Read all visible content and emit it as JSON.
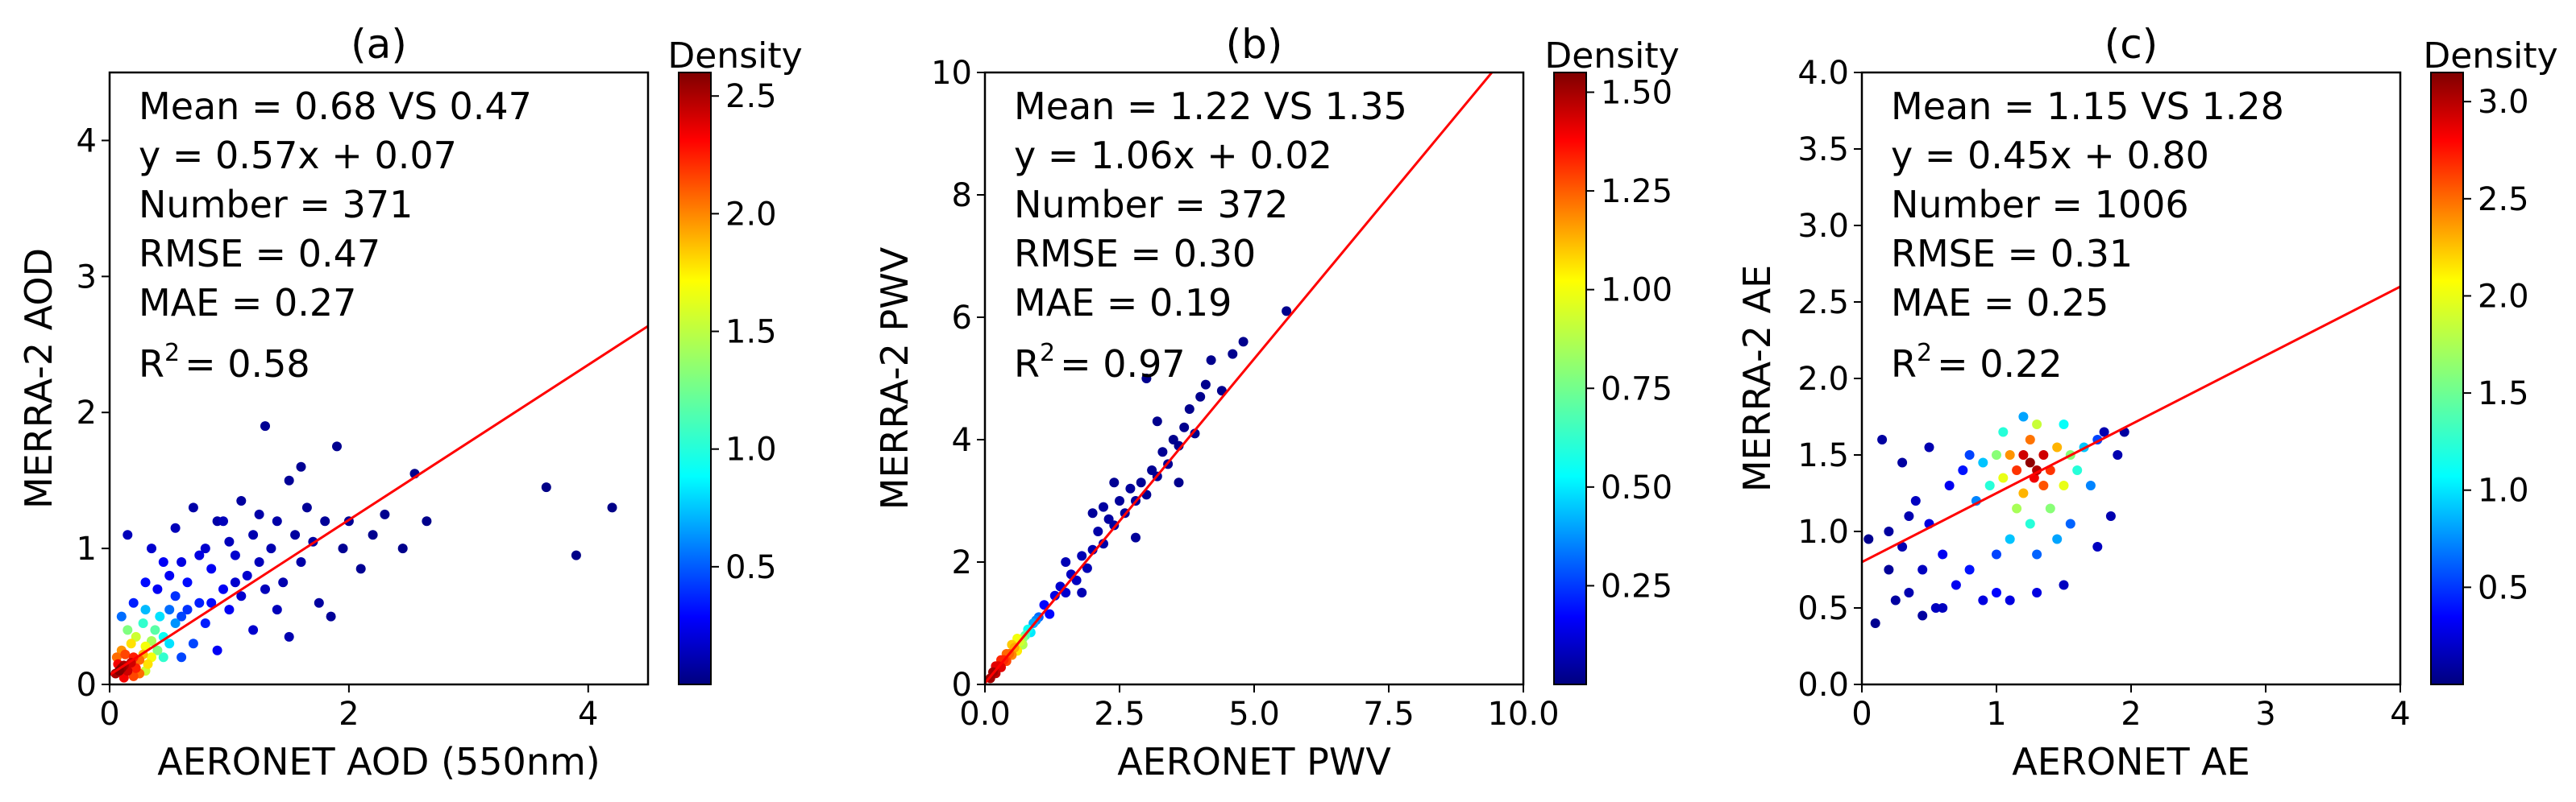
{
  "chart_data": [
    {
      "type": "scatter",
      "panel_label": "(a)",
      "xlabel": "AERONET AOD (550nm)",
      "ylabel": "MERRA-2 AOD",
      "xlim": [
        0,
        4.5
      ],
      "ylim": [
        0,
        4.5
      ],
      "xticks": [
        0,
        2,
        4
      ],
      "yticks": [
        0,
        1,
        2,
        3,
        4
      ],
      "xtick_labels": [
        "0",
        "2",
        "4"
      ],
      "ytick_labels": [
        "0",
        "1",
        "2",
        "3",
        "4"
      ],
      "stats": [
        "Mean = 0.68 VS 0.47",
        "y = 0.57x + 0.07",
        "Number = 371",
        "RMSE = 0.47",
        "MAE = 0.27"
      ],
      "r2_value": "= 0.58",
      "fit": {
        "slope": 0.57,
        "intercept": 0.07
      },
      "colorbar": {
        "title": "Density",
        "min": 0.0,
        "max": 2.6,
        "ticks": [
          0.5,
          1.0,
          1.5,
          2.0,
          2.5
        ],
        "tick_labels": [
          "0.5",
          "1.0",
          "1.5",
          "2.0",
          "2.5"
        ]
      },
      "points": [
        [
          0.05,
          0.08,
          2.5
        ],
        [
          0.08,
          0.1,
          2.6
        ],
        [
          0.1,
          0.12,
          2.55
        ],
        [
          0.12,
          0.14,
          2.5
        ],
        [
          0.15,
          0.1,
          2.4
        ],
        [
          0.07,
          0.15,
          2.3
        ],
        [
          0.18,
          0.16,
          2.4
        ],
        [
          0.2,
          0.2,
          2.2
        ],
        [
          0.13,
          0.22,
          2.1
        ],
        [
          0.22,
          0.12,
          2.2
        ],
        [
          0.25,
          0.18,
          2.0
        ],
        [
          0.1,
          0.25,
          1.9
        ],
        [
          0.28,
          0.22,
          1.8
        ],
        [
          0.3,
          0.28,
          1.6
        ],
        [
          0.18,
          0.3,
          1.7
        ],
        [
          0.32,
          0.15,
          1.7
        ],
        [
          0.35,
          0.32,
          1.4
        ],
        [
          0.22,
          0.35,
          1.5
        ],
        [
          0.4,
          0.25,
          1.3
        ],
        [
          0.15,
          0.4,
          1.3
        ],
        [
          0.38,
          0.4,
          1.2
        ],
        [
          0.45,
          0.35,
          1.0
        ],
        [
          0.28,
          0.45,
          1.1
        ],
        [
          0.5,
          0.3,
          0.9
        ],
        [
          0.42,
          0.5,
          0.9
        ],
        [
          0.55,
          0.45,
          0.7
        ],
        [
          0.3,
          0.55,
          0.8
        ],
        [
          0.5,
          0.55,
          0.6
        ],
        [
          0.6,
          0.5,
          0.5
        ],
        [
          0.06,
          0.2,
          2.0
        ],
        [
          0.2,
          0.06,
          2.1
        ],
        [
          0.12,
          0.05,
          2.3
        ],
        [
          0.25,
          0.08,
          2.0
        ],
        [
          0.35,
          0.2,
          1.6
        ],
        [
          0.45,
          0.2,
          1.1
        ],
        [
          0.3,
          0.1,
          1.5
        ],
        [
          0.15,
          1.1,
          0.15
        ],
        [
          0.1,
          0.5,
          0.6
        ],
        [
          0.2,
          0.6,
          0.4
        ],
        [
          0.3,
          0.75,
          0.35
        ],
        [
          0.4,
          0.7,
          0.3
        ],
        [
          0.5,
          0.8,
          0.3
        ],
        [
          0.55,
          0.65,
          0.45
        ],
        [
          0.6,
          0.9,
          0.25
        ],
        [
          0.65,
          0.75,
          0.35
        ],
        [
          0.7,
          1.3,
          0.1
        ],
        [
          0.75,
          0.6,
          0.4
        ],
        [
          0.8,
          1.0,
          0.2
        ],
        [
          0.85,
          0.85,
          0.3
        ],
        [
          0.9,
          1.2,
          0.1
        ],
        [
          0.95,
          0.7,
          0.3
        ],
        [
          1.0,
          1.05,
          0.15
        ],
        [
          1.05,
          0.95,
          0.2
        ],
        [
          1.1,
          1.35,
          0.08
        ],
        [
          1.15,
          0.8,
          0.2
        ],
        [
          1.2,
          1.1,
          0.12
        ],
        [
          1.25,
          0.9,
          0.15
        ],
        [
          1.3,
          1.9,
          0.05
        ],
        [
          1.35,
          1.0,
          0.12
        ],
        [
          1.4,
          1.2,
          0.1
        ],
        [
          1.45,
          0.75,
          0.12
        ],
        [
          1.5,
          1.5,
          0.06
        ],
        [
          1.55,
          1.1,
          0.08
        ],
        [
          1.6,
          0.9,
          0.1
        ],
        [
          1.65,
          1.3,
          0.06
        ],
        [
          1.7,
          1.05,
          0.08
        ],
        [
          1.75,
          0.6,
          0.08
        ],
        [
          1.8,
          1.2,
          0.06
        ],
        [
          1.85,
          0.5,
          0.06
        ],
        [
          1.9,
          1.75,
          0.04
        ],
        [
          1.95,
          1.0,
          0.05
        ],
        [
          2.0,
          1.2,
          0.05
        ],
        [
          2.1,
          0.85,
          0.05
        ],
        [
          2.2,
          1.1,
          0.04
        ],
        [
          2.3,
          1.25,
          0.04
        ],
        [
          2.45,
          1.0,
          0.03
        ],
        [
          2.55,
          1.55,
          0.03
        ],
        [
          2.65,
          1.2,
          0.03
        ],
        [
          3.65,
          1.45,
          0.02
        ],
        [
          3.9,
          0.95,
          0.02
        ],
        [
          4.2,
          1.3,
          0.02
        ],
        [
          0.7,
          0.3,
          0.5
        ],
        [
          0.8,
          0.45,
          0.4
        ],
        [
          0.9,
          0.25,
          0.3
        ],
        [
          1.0,
          0.55,
          0.3
        ],
        [
          1.2,
          0.4,
          0.2
        ],
        [
          1.4,
          0.55,
          0.15
        ],
        [
          1.5,
          0.35,
          0.12
        ],
        [
          0.6,
          0.2,
          0.5
        ],
        [
          0.95,
          1.2,
          0.15
        ],
        [
          1.1,
          0.65,
          0.2
        ],
        [
          1.3,
          0.7,
          0.15
        ],
        [
          0.45,
          0.9,
          0.3
        ],
        [
          0.35,
          1.0,
          0.2
        ],
        [
          0.55,
          1.15,
          0.15
        ],
        [
          0.75,
          0.95,
          0.25
        ],
        [
          1.6,
          1.6,
          0.05
        ],
        [
          1.25,
          1.25,
          0.1
        ],
        [
          1.05,
          0.75,
          0.2
        ],
        [
          0.85,
          0.6,
          0.35
        ],
        [
          0.65,
          0.55,
          0.45
        ]
      ]
    },
    {
      "type": "scatter",
      "panel_label": "(b)",
      "xlabel": "AERONET PWV",
      "ylabel": "MERRA-2 PWV",
      "xlim": [
        0,
        10
      ],
      "ylim": [
        0,
        10
      ],
      "xticks": [
        0,
        2.5,
        5,
        7.5,
        10
      ],
      "yticks": [
        0,
        2,
        4,
        6,
        8,
        10
      ],
      "xtick_labels": [
        "0.0",
        "2.5",
        "5.0",
        "7.5",
        "10.0"
      ],
      "ytick_labels": [
        "0",
        "2",
        "4",
        "6",
        "8",
        "10"
      ],
      "stats": [
        "Mean = 1.22 VS 1.35",
        "y = 1.06x + 0.02",
        "Number = 372",
        "RMSE = 0.30",
        "MAE = 0.19"
      ],
      "r2_value": "= 0.97",
      "fit": {
        "slope": 1.06,
        "intercept": 0.02
      },
      "colorbar": {
        "title": "Density",
        "min": 0.0,
        "max": 1.55,
        "ticks": [
          0.25,
          0.5,
          0.75,
          1.0,
          1.25,
          1.5
        ],
        "tick_labels": [
          "0.25",
          "0.50",
          "0.75",
          "1.00",
          "1.25",
          "1.50"
        ]
      },
      "points": [
        [
          0.1,
          0.1,
          1.5
        ],
        [
          0.15,
          0.2,
          1.5
        ],
        [
          0.2,
          0.18,
          1.45
        ],
        [
          0.25,
          0.3,
          1.4
        ],
        [
          0.3,
          0.28,
          1.4
        ],
        [
          0.35,
          0.4,
          1.3
        ],
        [
          0.4,
          0.38,
          1.25
        ],
        [
          0.45,
          0.5,
          1.2
        ],
        [
          0.5,
          0.48,
          1.15
        ],
        [
          0.55,
          0.6,
          1.1
        ],
        [
          0.6,
          0.55,
          1.0
        ],
        [
          0.65,
          0.7,
          0.9
        ],
        [
          0.7,
          0.75,
          0.8
        ],
        [
          0.75,
          0.8,
          0.7
        ],
        [
          0.8,
          0.9,
          0.6
        ],
        [
          0.85,
          0.85,
          0.55
        ],
        [
          0.9,
          1.0,
          0.45
        ],
        [
          0.95,
          1.05,
          0.4
        ],
        [
          1.0,
          1.1,
          0.35
        ],
        [
          0.3,
          0.4,
          1.3
        ],
        [
          0.4,
          0.5,
          1.2
        ],
        [
          0.5,
          0.65,
          1.05
        ],
        [
          0.2,
          0.3,
          1.4
        ],
        [
          0.6,
          0.75,
          0.95
        ],
        [
          0.7,
          0.65,
          0.85
        ],
        [
          1.1,
          1.3,
          0.2
        ],
        [
          1.2,
          1.15,
          0.2
        ],
        [
          1.3,
          1.45,
          0.15
        ],
        [
          1.4,
          1.6,
          0.12
        ],
        [
          1.5,
          1.5,
          0.12
        ],
        [
          1.6,
          1.8,
          0.1
        ],
        [
          1.7,
          1.7,
          0.1
        ],
        [
          1.8,
          2.1,
          0.08
        ],
        [
          1.9,
          1.9,
          0.08
        ],
        [
          2.0,
          2.2,
          0.07
        ],
        [
          2.1,
          2.5,
          0.06
        ],
        [
          2.2,
          2.3,
          0.06
        ],
        [
          2.3,
          2.7,
          0.05
        ],
        [
          2.4,
          2.6,
          0.05
        ],
        [
          2.5,
          3.0,
          0.04
        ],
        [
          2.6,
          2.8,
          0.04
        ],
        [
          2.7,
          3.2,
          0.04
        ],
        [
          2.8,
          3.0,
          0.04
        ],
        [
          2.9,
          3.3,
          0.03
        ],
        [
          3.0,
          3.1,
          0.03
        ],
        [
          3.1,
          3.5,
          0.03
        ],
        [
          3.2,
          3.4,
          0.03
        ],
        [
          3.3,
          3.8,
          0.03
        ],
        [
          3.4,
          3.6,
          0.03
        ],
        [
          3.5,
          4.0,
          0.02
        ],
        [
          3.6,
          3.9,
          0.02
        ],
        [
          3.7,
          4.2,
          0.02
        ],
        [
          3.8,
          4.5,
          0.02
        ],
        [
          3.9,
          4.1,
          0.02
        ],
        [
          4.0,
          4.7,
          0.02
        ],
        [
          4.1,
          4.9,
          0.02
        ],
        [
          4.2,
          5.3,
          0.02
        ],
        [
          4.4,
          4.8,
          0.02
        ],
        [
          4.6,
          5.4,
          0.02
        ],
        [
          4.8,
          5.6,
          0.02
        ],
        [
          5.6,
          6.1,
          0.02
        ],
        [
          2.4,
          3.3,
          0.03
        ],
        [
          2.0,
          2.8,
          0.04
        ],
        [
          3.2,
          4.3,
          0.02
        ],
        [
          1.5,
          2.0,
          0.08
        ],
        [
          2.8,
          2.4,
          0.04
        ],
        [
          3.6,
          3.3,
          0.02
        ],
        [
          1.8,
          1.5,
          0.08
        ],
        [
          3.0,
          5.0,
          0.02
        ],
        [
          2.2,
          2.9,
          0.05
        ]
      ]
    },
    {
      "type": "scatter",
      "panel_label": "(c)",
      "xlabel": "AERONET AE",
      "ylabel": "MERRA-2 AE",
      "xlim": [
        0,
        4
      ],
      "ylim": [
        0,
        4
      ],
      "xticks": [
        0,
        1,
        2,
        3,
        4
      ],
      "yticks": [
        0,
        0.5,
        1,
        1.5,
        2,
        2.5,
        3,
        3.5,
        4
      ],
      "xtick_labels": [
        "0",
        "1",
        "2",
        "3",
        "4"
      ],
      "ytick_labels": [
        "0.0",
        "0.5",
        "1.0",
        "1.5",
        "2.0",
        "2.5",
        "3.0",
        "3.5",
        "4.0"
      ],
      "stats": [
        "Mean = 1.15 VS 1.28",
        "y = 0.45x + 0.80",
        "Number = 1006",
        "RMSE = 0.31",
        "MAE = 0.25"
      ],
      "r2_value": "= 0.22",
      "fit": {
        "slope": 0.45,
        "intercept": 0.8
      },
      "colorbar": {
        "title": "Density",
        "min": 0.0,
        "max": 3.15,
        "ticks": [
          0.5,
          1.0,
          1.5,
          2.0,
          2.5,
          3.0
        ],
        "tick_labels": [
          "0.5",
          "1.0",
          "1.5",
          "2.0",
          "2.5",
          "3.0"
        ]
      },
      "points": [
        [
          1.25,
          1.45,
          3.1
        ],
        [
          1.3,
          1.4,
          3.0
        ],
        [
          1.2,
          1.5,
          2.9
        ],
        [
          1.35,
          1.5,
          2.9
        ],
        [
          1.28,
          1.35,
          2.8
        ],
        [
          1.15,
          1.4,
          2.6
        ],
        [
          1.4,
          1.4,
          2.6
        ],
        [
          1.25,
          1.6,
          2.4
        ],
        [
          1.35,
          1.3,
          2.5
        ],
        [
          1.1,
          1.5,
          2.3
        ],
        [
          1.45,
          1.55,
          2.2
        ],
        [
          1.2,
          1.25,
          2.2
        ],
        [
          1.05,
          1.35,
          1.9
        ],
        [
          1.5,
          1.3,
          1.9
        ],
        [
          1.3,
          1.7,
          1.8
        ],
        [
          1.0,
          1.5,
          1.6
        ],
        [
          1.55,
          1.5,
          1.6
        ],
        [
          1.15,
          1.15,
          1.7
        ],
        [
          1.4,
          1.15,
          1.6
        ],
        [
          0.95,
          1.3,
          1.3
        ],
        [
          1.6,
          1.4,
          1.3
        ],
        [
          1.25,
          1.05,
          1.3
        ],
        [
          1.05,
          1.65,
          1.3
        ],
        [
          1.5,
          1.7,
          1.2
        ],
        [
          0.9,
          1.45,
          1.0
        ],
        [
          1.65,
          1.55,
          1.0
        ],
        [
          1.1,
          0.95,
          1.0
        ],
        [
          1.45,
          0.95,
          0.9
        ],
        [
          0.85,
          1.2,
          0.8
        ],
        [
          1.7,
          1.3,
          0.8
        ],
        [
          1.2,
          1.75,
          0.9
        ],
        [
          1.3,
          0.85,
          0.7
        ],
        [
          0.8,
          1.5,
          0.6
        ],
        [
          1.75,
          1.6,
          0.6
        ],
        [
          1.0,
          0.85,
          0.6
        ],
        [
          1.55,
          1.05,
          0.7
        ],
        [
          0.15,
          1.6,
          0.1
        ],
        [
          0.2,
          1.0,
          0.1
        ],
        [
          0.1,
          0.4,
          0.05
        ],
        [
          0.25,
          0.55,
          0.1
        ],
        [
          0.3,
          0.9,
          0.15
        ],
        [
          0.35,
          0.6,
          0.15
        ],
        [
          0.4,
          1.2,
          0.2
        ],
        [
          0.45,
          0.75,
          0.2
        ],
        [
          0.5,
          1.05,
          0.3
        ],
        [
          0.55,
          0.5,
          0.2
        ],
        [
          0.6,
          0.85,
          0.35
        ],
        [
          0.65,
          1.3,
          0.35
        ],
        [
          0.7,
          0.65,
          0.35
        ],
        [
          0.75,
          1.4,
          0.45
        ],
        [
          0.8,
          0.75,
          0.45
        ],
        [
          0.9,
          0.55,
          0.3
        ],
        [
          1.0,
          0.6,
          0.4
        ],
        [
          1.1,
          0.55,
          0.3
        ],
        [
          1.3,
          0.6,
          0.3
        ],
        [
          1.5,
          0.65,
          0.2
        ],
        [
          1.8,
          1.65,
          0.15
        ],
        [
          1.9,
          1.5,
          0.15
        ],
        [
          1.95,
          1.65,
          0.1
        ],
        [
          1.85,
          1.1,
          0.15
        ],
        [
          1.75,
          0.9,
          0.2
        ],
        [
          0.3,
          1.45,
          0.1
        ],
        [
          0.5,
          1.55,
          0.15
        ],
        [
          0.2,
          0.75,
          0.08
        ],
        [
          0.45,
          0.45,
          0.1
        ],
        [
          0.6,
          0.5,
          0.2
        ],
        [
          0.35,
          1.1,
          0.15
        ],
        [
          0.05,
          0.95,
          0.05
        ]
      ]
    }
  ]
}
